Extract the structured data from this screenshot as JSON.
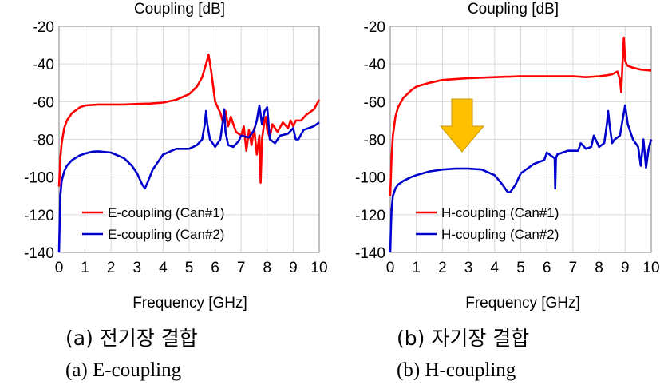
{
  "captions": {
    "a_ko": "(a) 전기장 결합",
    "a_en": "(a) E-coupling",
    "b_ko": "(b) 자기장 결합",
    "b_en": "(b) H-coupling"
  },
  "arrow_color": "#FFC000",
  "chart_data": [
    {
      "type": "line",
      "title": "Coupling [dB]",
      "xlabel": "Frequency [GHz]",
      "ylabel": "",
      "xlim": [
        0,
        10
      ],
      "ylim": [
        -140,
        -20
      ],
      "xticks": [
        "0",
        "1",
        "2",
        "3",
        "4",
        "5",
        "6",
        "7",
        "8",
        "9",
        "10"
      ],
      "yticks": [
        "-20",
        "-40",
        "-60",
        "-80",
        "-100",
        "-120",
        "-140"
      ],
      "grid": true,
      "legend_position": "bottom-left",
      "series": [
        {
          "name": "E-coupling (Can#1)",
          "color": "#FF0000",
          "x": [
            0.0,
            0.05,
            0.1,
            0.2,
            0.3,
            0.5,
            0.8,
            1.0,
            1.5,
            2.0,
            2.5,
            3.0,
            3.5,
            4.0,
            4.5,
            5.0,
            5.3,
            5.5,
            5.65,
            5.75,
            5.85,
            6.0,
            6.2,
            6.3,
            6.4,
            6.5,
            6.6,
            6.8,
            7.0,
            7.1,
            7.2,
            7.3,
            7.4,
            7.5,
            7.6,
            7.7,
            7.75,
            7.8,
            7.9,
            7.95,
            8.0,
            8.1,
            8.2,
            8.4,
            8.6,
            8.8,
            8.9,
            9.0,
            9.1,
            9.3,
            9.5,
            9.8,
            10.0
          ],
          "y": [
            -105,
            -90,
            -82,
            -74,
            -70,
            -66,
            -63,
            -62,
            -61.5,
            -61.5,
            -61.5,
            -61.2,
            -61,
            -60.5,
            -59,
            -56,
            -52,
            -47,
            -40,
            -35,
            -44,
            -60,
            -66,
            -71,
            -65,
            -73,
            -68,
            -76,
            -78,
            -73,
            -86,
            -75,
            -83,
            -74,
            -88,
            -78,
            -103,
            -80,
            -70,
            -68,
            -75,
            -79,
            -72,
            -76,
            -71,
            -74,
            -70,
            -73,
            -70,
            -70,
            -67,
            -64,
            -59
          ]
        },
        {
          "name": "E-coupling (Can#2)",
          "color": "#0000CC",
          "x": [
            0.0,
            0.03,
            0.05,
            0.1,
            0.2,
            0.3,
            0.5,
            0.8,
            1.0,
            1.3,
            1.5,
            2.0,
            2.5,
            2.8,
            3.0,
            3.2,
            3.3,
            3.4,
            3.6,
            4.0,
            4.5,
            5.0,
            5.3,
            5.5,
            5.6,
            5.65,
            5.7,
            5.8,
            6.0,
            6.2,
            6.3,
            6.35,
            6.4,
            6.5,
            6.7,
            6.9,
            7.0,
            7.3,
            7.5,
            7.6,
            7.7,
            7.8,
            7.9,
            8.0,
            8.1,
            8.3,
            8.5,
            8.8,
            9.0,
            9.1,
            9.2,
            9.4,
            9.6,
            9.8,
            10.0
          ],
          "y": [
            -140,
            -120,
            -110,
            -102,
            -97,
            -94,
            -91,
            -88.5,
            -87.5,
            -86.5,
            -86.3,
            -87,
            -90,
            -94,
            -98,
            -104,
            -106,
            -103,
            -96,
            -88,
            -85,
            -85,
            -83,
            -80,
            -72,
            -65,
            -72,
            -80,
            -84,
            -80,
            -70,
            -64,
            -76,
            -83,
            -84,
            -81,
            -78,
            -79,
            -75,
            -70,
            -62,
            -72,
            -65,
            -63,
            -80,
            -82,
            -78,
            -77,
            -74,
            -80,
            -80,
            -75,
            -74,
            -73,
            -71
          ]
        }
      ]
    },
    {
      "type": "line",
      "title": "Coupling [dB]",
      "xlabel": "Frequency [GHz]",
      "ylabel": "",
      "xlim": [
        0,
        10
      ],
      "ylim": [
        -140,
        -20
      ],
      "xticks": [
        "0",
        "1",
        "2",
        "3",
        "4",
        "5",
        "6",
        "7",
        "8",
        "9",
        "10"
      ],
      "yticks": [
        "-20",
        "-40",
        "-60",
        "-80",
        "-100",
        "-120",
        "-140"
      ],
      "grid": true,
      "legend_position": "bottom-left",
      "series": [
        {
          "name": "H-coupling (Can#1)",
          "color": "#FF0000",
          "x": [
            0.0,
            0.05,
            0.1,
            0.2,
            0.3,
            0.5,
            0.8,
            1.0,
            1.5,
            2.0,
            3.0,
            4.0,
            5.0,
            6.0,
            7.0,
            7.5,
            8.0,
            8.3,
            8.5,
            8.7,
            8.8,
            8.85,
            8.9,
            8.95,
            9.0,
            9.05,
            9.1,
            9.3,
            9.6,
            10.0
          ],
          "y": [
            -110,
            -90,
            -78,
            -68,
            -63,
            -58,
            -54,
            -52,
            -50,
            -48.5,
            -47.5,
            -47,
            -46.5,
            -46.5,
            -46.5,
            -47,
            -46.5,
            -46,
            -45.5,
            -44,
            -48,
            -55,
            -40,
            -26,
            -38,
            -40,
            -41,
            -42,
            -43,
            -43.5
          ]
        },
        {
          "name": "H-coupling (Can#2)",
          "color": "#0000CC",
          "x": [
            0.0,
            0.03,
            0.05,
            0.1,
            0.2,
            0.3,
            0.5,
            0.8,
            1.0,
            1.5,
            2.0,
            2.5,
            3.0,
            3.5,
            4.0,
            4.3,
            4.5,
            4.6,
            4.8,
            5.0,
            5.5,
            5.9,
            6.0,
            6.2,
            6.3,
            6.32,
            6.35,
            6.4,
            6.6,
            6.8,
            7.0,
            7.2,
            7.3,
            7.5,
            7.7,
            7.8,
            8.0,
            8.2,
            8.3,
            8.35,
            8.4,
            8.5,
            8.6,
            8.8,
            8.9,
            9.0,
            9.1,
            9.3,
            9.5,
            9.6,
            9.7,
            9.8,
            9.9,
            10.0
          ],
          "y": [
            -140,
            -125,
            -118,
            -110,
            -106,
            -104,
            -102,
            -100,
            -99,
            -97,
            -96,
            -95.5,
            -95.5,
            -96,
            -99,
            -104,
            -108,
            -108,
            -104,
            -98,
            -93,
            -91,
            -87,
            -89,
            -90,
            -106,
            -90,
            -88,
            -87,
            -86,
            -86,
            -86,
            -82,
            -85,
            -84,
            -78,
            -84,
            -82,
            -72,
            -65,
            -72,
            -82,
            -80,
            -78,
            -70,
            -62,
            -72,
            -80,
            -84,
            -94,
            -80,
            -95,
            -85,
            -80
          ]
        }
      ]
    }
  ]
}
